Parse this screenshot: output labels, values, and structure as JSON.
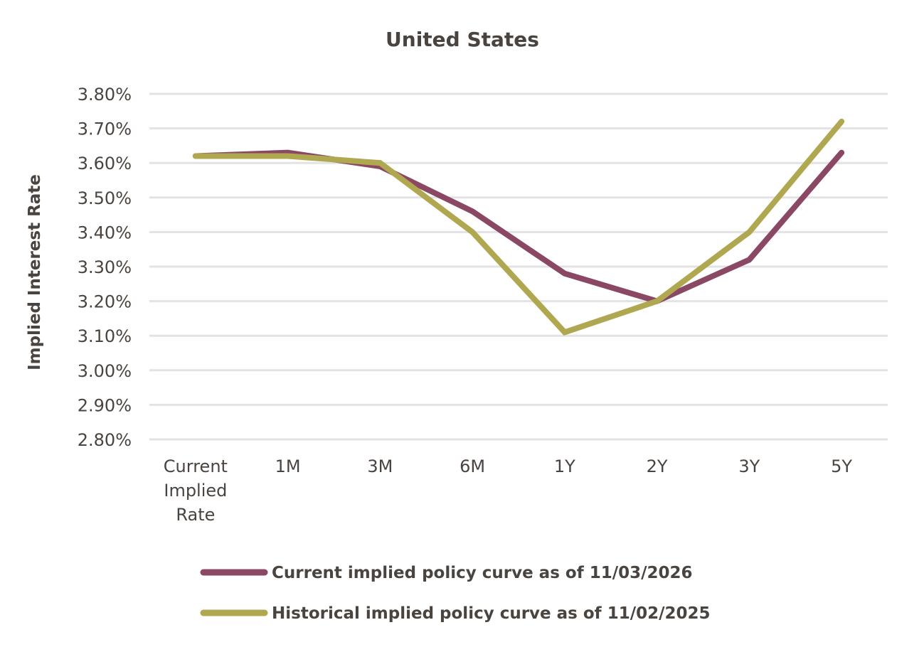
{
  "chart_data": {
    "type": "line",
    "title": "United States",
    "xlabel": "",
    "ylabel": "Implied Interest Rate",
    "categories": [
      [
        "Current",
        "Implied",
        "Rate"
      ],
      [
        "1M"
      ],
      [
        "3M"
      ],
      [
        "6M"
      ],
      [
        "1Y"
      ],
      [
        "2Y"
      ],
      [
        "3Y"
      ],
      [
        "5Y"
      ]
    ],
    "yticks": [
      2.8,
      2.9,
      3.0,
      3.1,
      3.2,
      3.3,
      3.4,
      3.5,
      3.6,
      3.7,
      3.8
    ],
    "ytick_labels": [
      "2.80%",
      "2.90%",
      "3.00%",
      "3.10%",
      "3.20%",
      "3.30%",
      "3.40%",
      "3.50%",
      "3.60%",
      "3.70%",
      "3.80%"
    ],
    "ylim": [
      2.8,
      3.8
    ],
    "grid": true,
    "legend_position": "bottom",
    "series": [
      {
        "name": "Current implied policy curve as of 11/03/2026",
        "color": "#8a4865",
        "values": [
          3.62,
          3.63,
          3.59,
          3.46,
          3.28,
          3.2,
          3.32,
          3.63
        ]
      },
      {
        "name": "Historical implied policy curve as of 11/02/2025",
        "color": "#afa851",
        "values": [
          3.62,
          3.62,
          3.6,
          3.4,
          3.11,
          3.2,
          3.4,
          3.72
        ]
      }
    ]
  }
}
